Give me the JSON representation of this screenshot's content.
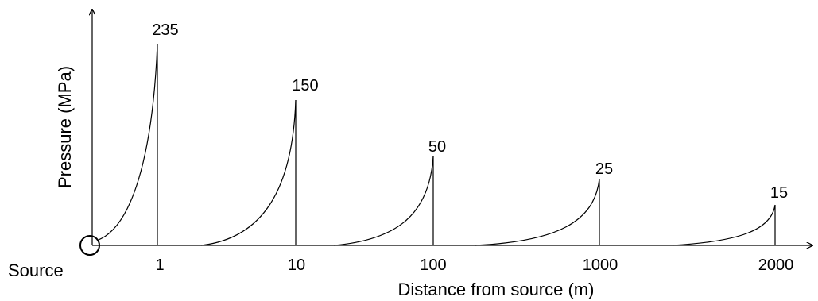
{
  "diagram": {
    "ylabel": "Pressure (MPa)",
    "xlabel": "Distance from source (m)",
    "source_label": "Source",
    "colors": {
      "line": "#000000",
      "background": "#ffffff"
    },
    "pulses": [
      {
        "distance_label": "1",
        "peak_label": "235"
      },
      {
        "distance_label": "10",
        "peak_label": "150"
      },
      {
        "distance_label": "100",
        "peak_label": "50"
      },
      {
        "distance_label": "1000",
        "peak_label": "25"
      },
      {
        "distance_label": "2000",
        "peak_label": "15"
      }
    ]
  }
}
